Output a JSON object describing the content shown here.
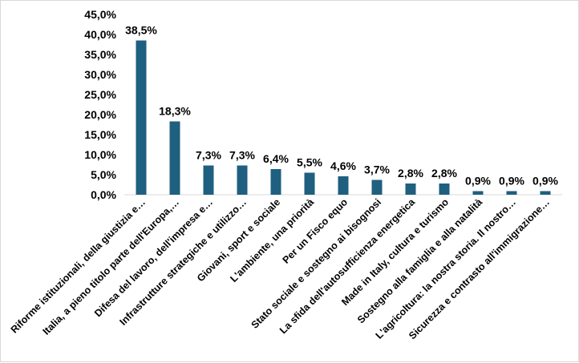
{
  "chart_data": {
    "type": "bar",
    "categories": [
      "Riforme istituzionali, della giustizia e…",
      "Italia, a pieno titolo parte dell'Europa,…",
      "Difesa del lavoro, dell'impresa e…",
      "Infrastrutture strategiche e utilizzo…",
      "Giovani, sport e sociale",
      "L'ambiente, una priorità",
      "Per un Fisco equo",
      "Stato sociale e sostegno ai bisognosi",
      "La sfida dell'autosufficienza energetica",
      "Made in Italy, cultura e turismo",
      "Sostegno alla famiglia e alla natalità",
      "L'agricoltura: la nostra storia. Il nostro…",
      "Sicurezza e contrasto all'immigrazione…"
    ],
    "values": [
      38.5,
      18.3,
      7.3,
      7.3,
      6.4,
      5.5,
      4.6,
      3.7,
      2.8,
      2.8,
      0.9,
      0.9,
      0.9
    ],
    "data_labels": [
      "38,5%",
      "18,3%",
      "7,3%",
      "7,3%",
      "6,4%",
      "5,5%",
      "4,6%",
      "3,7%",
      "2,8%",
      "2,8%",
      "0,9%",
      "0,9%",
      "0,9%"
    ],
    "y_ticks": [
      0,
      5,
      10,
      15,
      20,
      25,
      30,
      35,
      40,
      45
    ],
    "y_tick_labels": [
      "0,0%",
      "5,0%",
      "10,0%",
      "15,0%",
      "20,0%",
      "25,0%",
      "30,0%",
      "35,0%",
      "40,0%",
      "45,0%"
    ],
    "ylim": [
      0,
      45
    ],
    "grid": false,
    "bar_color": "#1f5f7f",
    "title": "",
    "xlabel": "",
    "ylabel": ""
  }
}
